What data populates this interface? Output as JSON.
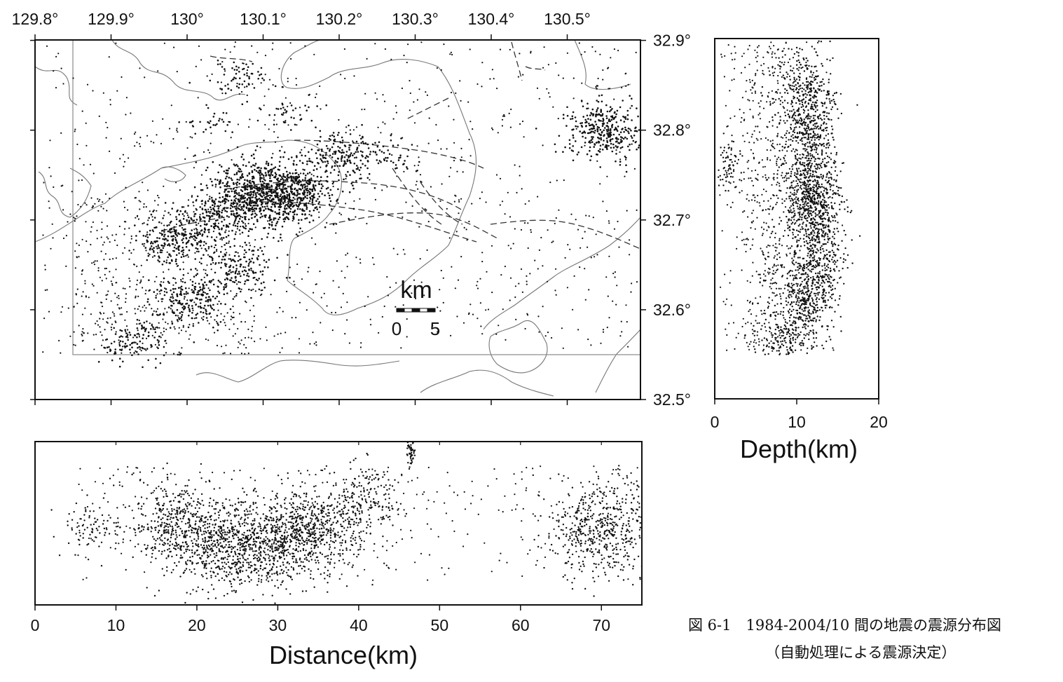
{
  "map": {
    "lon_ticks": [
      "129.8°",
      "129.9°",
      "130°",
      "130.1°",
      "130.2°",
      "130.3°",
      "130.4°",
      "130.5°"
    ],
    "lat_ticks": [
      "32.9°",
      "32.8°",
      "32.7°",
      "32.6°",
      "32.5°"
    ],
    "scale_bar": {
      "unit": "km",
      "start_label": "0",
      "end_label": "5"
    }
  },
  "depth_panel": {
    "xlabel": "Depth(km)",
    "ticks": [
      "0",
      "10",
      "20"
    ]
  },
  "distance_panel": {
    "xlabel": "Distance(km)",
    "ticks": [
      "0",
      "10",
      "20",
      "30",
      "40",
      "50",
      "60",
      "70"
    ]
  },
  "caption": {
    "line1": "図 6-1　1984-2004/10 間の地震の震源分布図",
    "line2": "（自動処理による震源決定）"
  },
  "chart_data": [
    {
      "type": "scatter",
      "panel": "map",
      "xlim": [
        129.8,
        130.6
      ],
      "ylim": [
        32.5,
        32.9
      ],
      "clusters": [
        {
          "lon": 130.095,
          "lat": 32.73,
          "n": 700
        },
        {
          "lon": 130.14,
          "lat": 32.73,
          "n": 350
        },
        {
          "lon": 130.205,
          "lat": 32.77,
          "n": 180
        },
        {
          "lon": 130.265,
          "lat": 32.77,
          "n": 50
        },
        {
          "lon": 130.55,
          "lat": 32.8,
          "n": 350
        },
        {
          "lon": 129.99,
          "lat": 32.68,
          "n": 250
        },
        {
          "lon": 130.05,
          "lat": 32.7,
          "n": 150
        },
        {
          "lon": 130.07,
          "lat": 32.645,
          "n": 150
        },
        {
          "lon": 130.0,
          "lat": 32.61,
          "n": 200
        },
        {
          "lon": 129.93,
          "lat": 32.565,
          "n": 100
        },
        {
          "lon": 130.07,
          "lat": 32.86,
          "n": 60
        },
        {
          "lon": 130.035,
          "lat": 32.81,
          "n": 30
        },
        {
          "lon": 130.14,
          "lat": 32.82,
          "n": 40
        }
      ]
    },
    {
      "type": "scatter",
      "panel": "depth-section",
      "xlabel": "Depth(km)",
      "xlim": [
        0,
        20
      ],
      "concentration_depth_km": [
        9,
        14
      ],
      "concentrations": [
        {
          "lat": 32.81,
          "depth": 11.5,
          "n": 350
        },
        {
          "lat": 32.72,
          "depth": 12.0,
          "n": 900
        },
        {
          "lat": 32.64,
          "depth": 12.5,
          "n": 250
        },
        {
          "lat": 32.6,
          "depth": 11.0,
          "n": 300
        },
        {
          "lat": 32.56,
          "depth": 8.0,
          "n": 150
        },
        {
          "lat": 32.76,
          "depth": 1.7,
          "n": 70
        },
        {
          "lat": 32.85,
          "depth": 11.0,
          "n": 200
        }
      ]
    },
    {
      "type": "scatter",
      "panel": "distance-section",
      "xlabel": "Distance(km)",
      "xlim": [
        0,
        75
      ],
      "concentrations": [
        {
          "distance": 7,
          "depth": 10.0,
          "n": 80
        },
        {
          "distance": 17,
          "depth": 10.0,
          "n": 350
        },
        {
          "distance": 23,
          "depth": 13.0,
          "n": 600
        },
        {
          "distance": 30,
          "depth": 12.0,
          "n": 500
        },
        {
          "distance": 35,
          "depth": 10.5,
          "n": 500
        },
        {
          "distance": 41.5,
          "depth": 6.5,
          "n": 150
        },
        {
          "distance": 46.5,
          "depth": 1.2,
          "n": 60
        },
        {
          "distance": 70,
          "depth": 11.0,
          "n": 500
        },
        {
          "distance": 75,
          "depth": 7.5,
          "n": 80
        }
      ]
    }
  ]
}
